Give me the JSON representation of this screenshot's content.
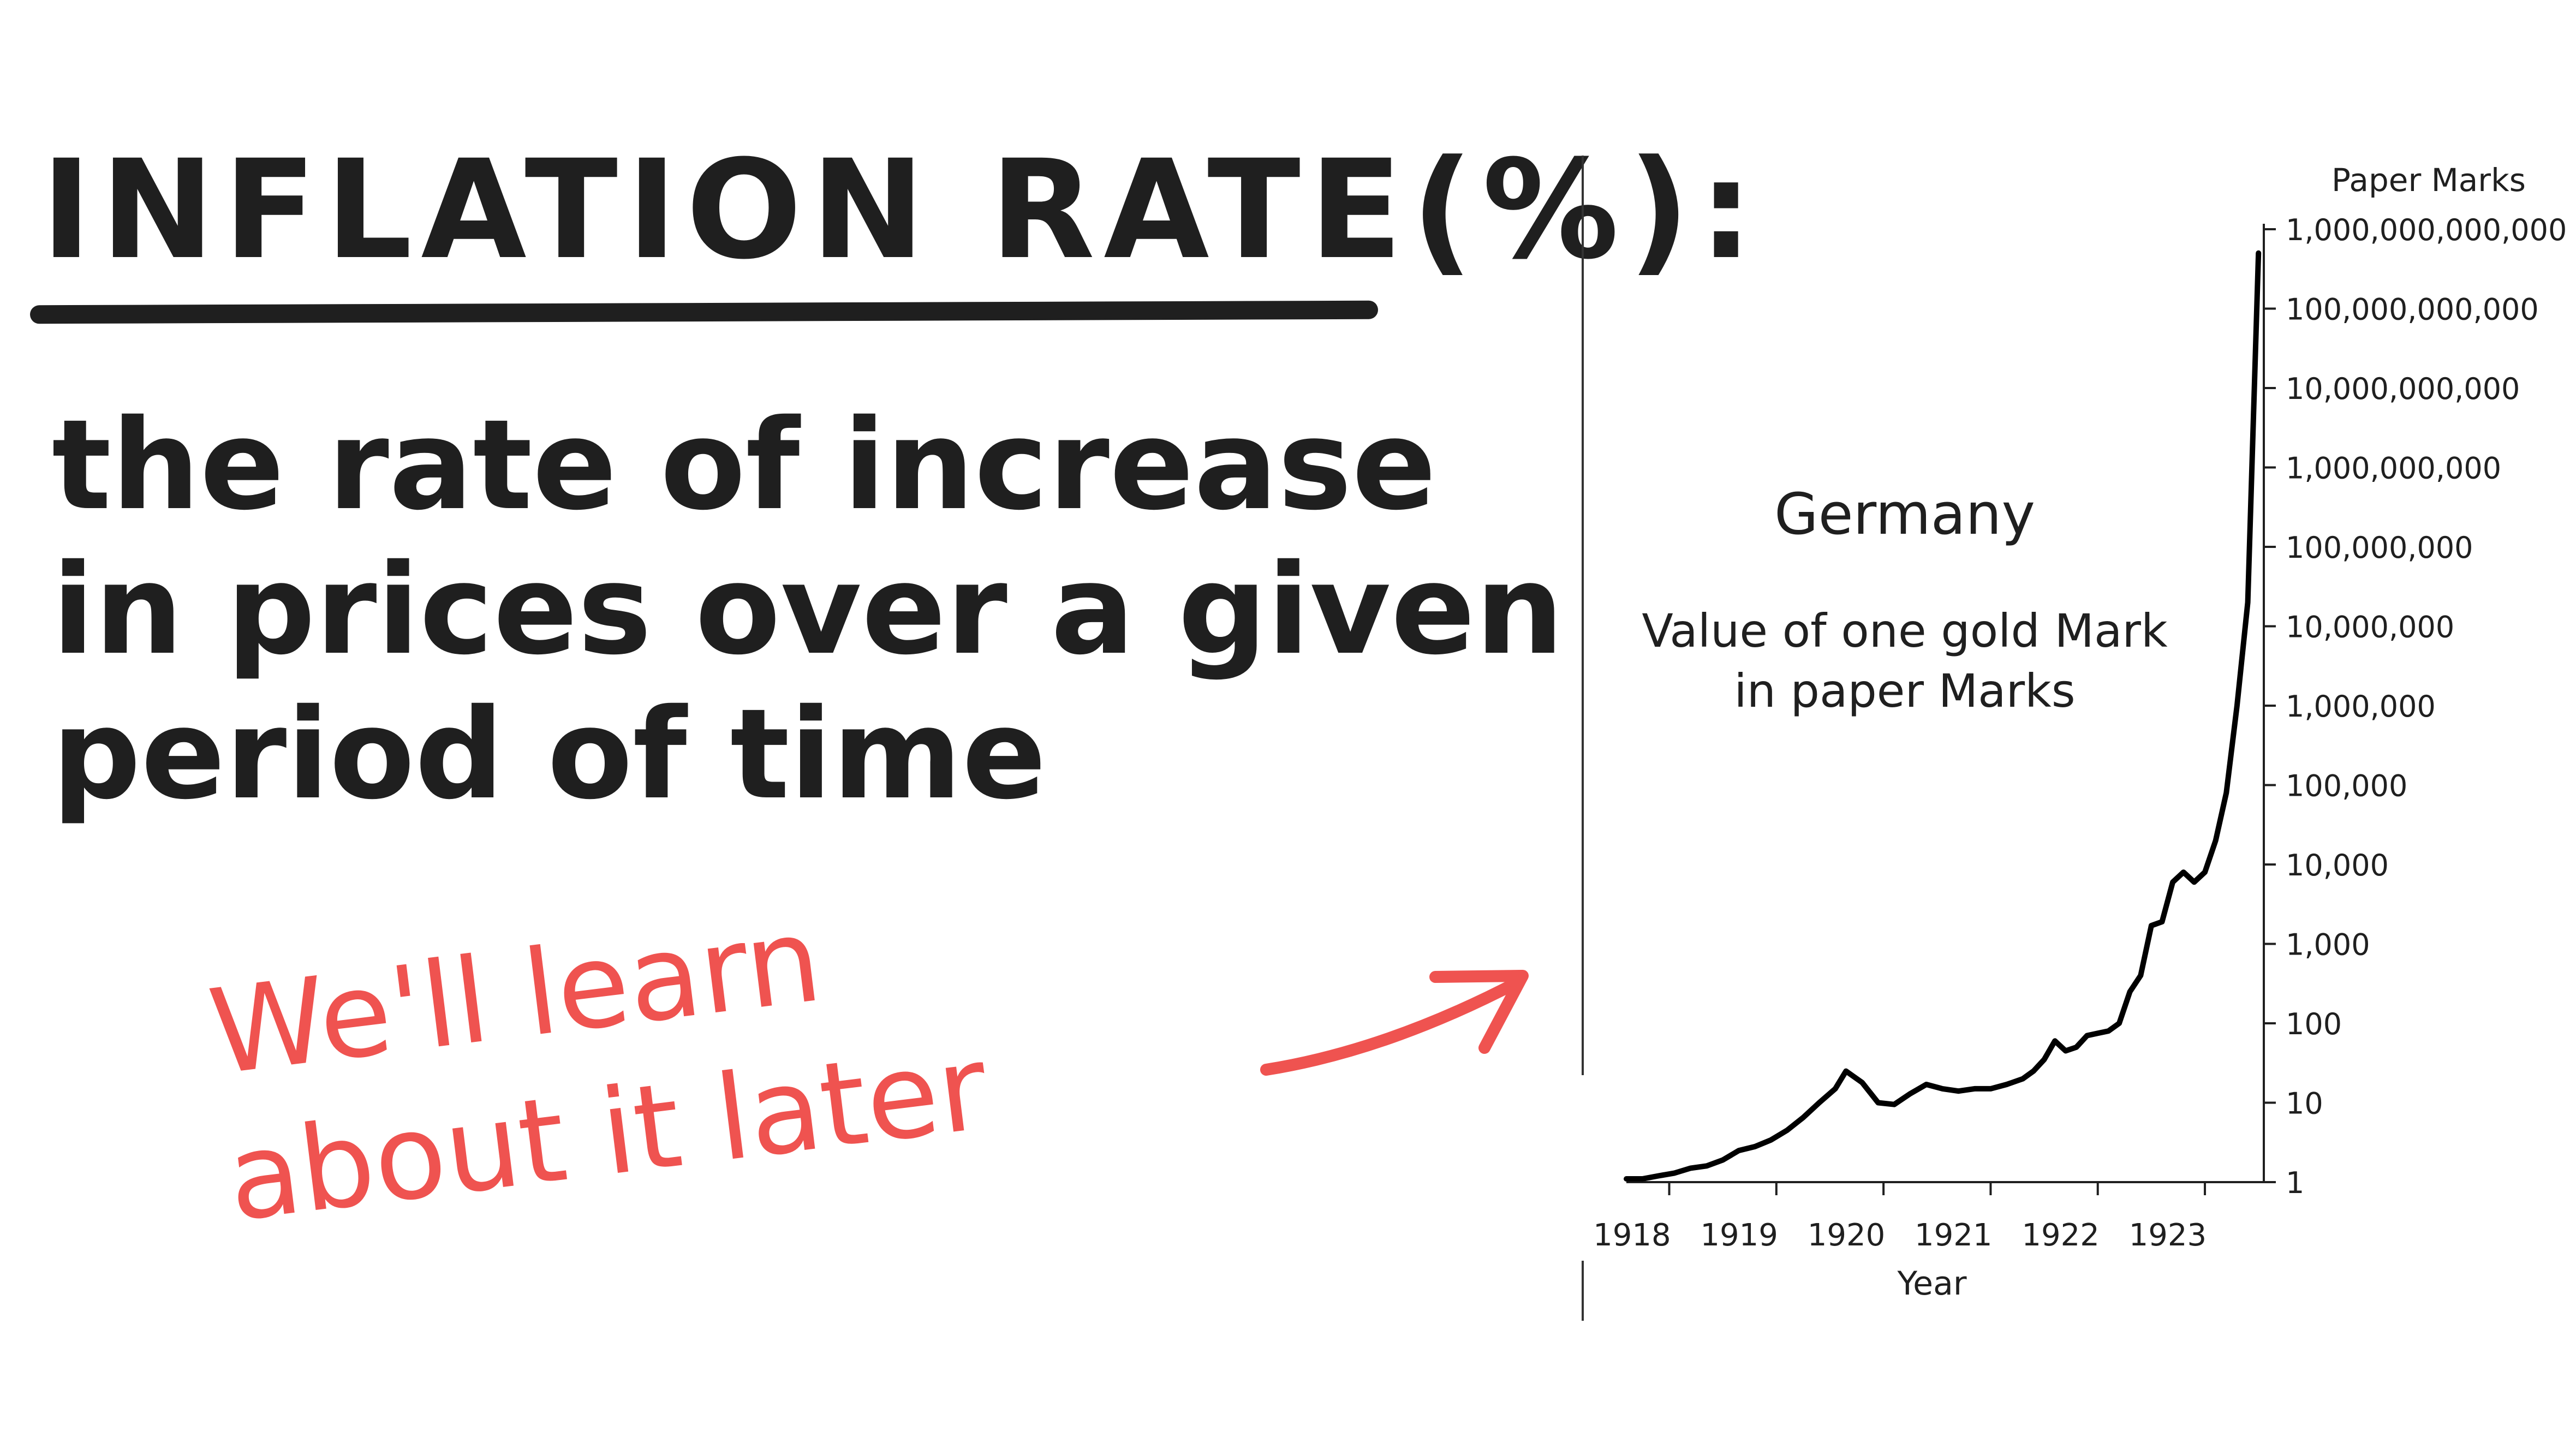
{
  "heading": "INFLATION RATE(%):",
  "definition": {
    "line1": "the rate of increase",
    "line2": "in prices over a given",
    "line3": "period of time"
  },
  "note": {
    "line1": "We'll learn",
    "line2": "about it later",
    "color": "#ef5350"
  },
  "chart_data": {
    "type": "line",
    "title": "Germany",
    "subtitle_line1": "Value of one gold Mark",
    "subtitle_line2": "in paper Marks",
    "xlabel": "Year",
    "ylabel": "Paper Marks",
    "x_tick_labels": [
      "1918",
      "1919",
      "1920",
      "1921",
      "1922",
      "1923"
    ],
    "y_tick_labels": [
      "1",
      "10",
      "100",
      "1,000",
      "10,000",
      "100,000",
      "1,000,000",
      "10,000,000",
      "100,000,000",
      "1,000,000,000",
      "10,000,000,000",
      "100,000,000,000",
      "1,000,000,000,000"
    ],
    "y_scale": "log",
    "ylim": [
      1,
      1000000000000
    ],
    "xlim": [
      1918.0,
      1923.95
    ],
    "grid": false,
    "line_color": "#000000",
    "series": [
      {
        "x": [
          1918.0,
          1918.15,
          1918.3,
          1918.45,
          1918.6,
          1918.75,
          1918.9,
          1919.05,
          1919.2,
          1919.35,
          1919.5,
          1919.65,
          1919.8,
          1919.95,
          1920.05,
          1920.2,
          1920.35,
          1920.5,
          1920.65,
          1920.8,
          1920.95,
          1921.1,
          1921.25,
          1921.4,
          1921.55,
          1921.7,
          1921.8,
          1921.9,
          1922.0,
          1922.1,
          1922.2,
          1922.3,
          1922.4,
          1922.5,
          1922.6,
          1922.7,
          1922.8,
          1922.9,
          1923.0,
          1923.1,
          1923.2,
          1923.3,
          1923.4,
          1923.5,
          1923.6,
          1923.7,
          1923.8,
          1923.9
        ],
        "y": [
          1.1,
          1.1,
          1.2,
          1.3,
          1.5,
          1.6,
          1.9,
          2.5,
          2.8,
          3.4,
          4.5,
          6.5,
          10,
          15,
          25,
          18,
          10,
          9.5,
          13,
          17,
          15,
          14,
          15,
          15,
          17,
          20,
          25,
          35,
          60,
          45,
          50,
          70,
          75,
          80,
          100,
          250,
          400,
          1700,
          1900,
          6000,
          8000,
          6000,
          8000,
          20000,
          80000,
          1000000,
          20000000,
          500000000000
        ]
      }
    ]
  }
}
